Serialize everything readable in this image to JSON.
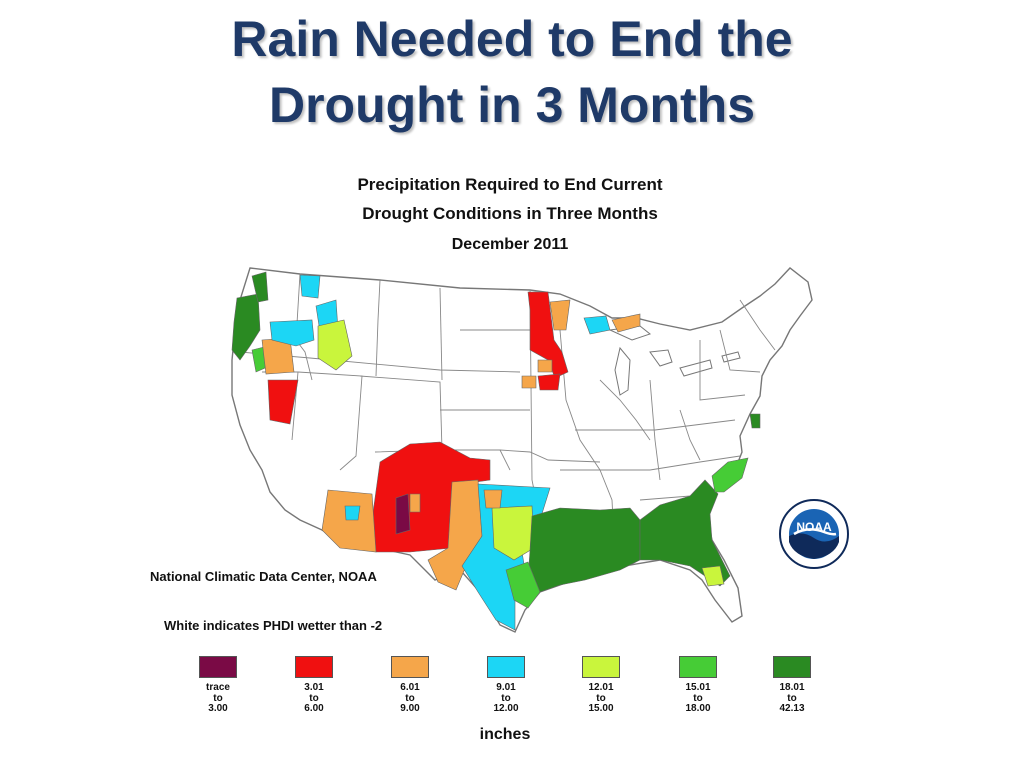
{
  "slide": {
    "title_line1": "Rain Needed to End the",
    "title_line2": "Drought in 3 Months"
  },
  "map": {
    "heading_line1": "Precipitation Required to End Current",
    "heading_line2": "Drought Conditions in Three Months",
    "date": "December 2011",
    "credit": "National Climatic Data Center, NOAA",
    "note": "White indicates PHDI wetter than -2",
    "units": "inches",
    "logo_text": "NOAA",
    "legend": [
      {
        "from": "trace",
        "to_word": "to",
        "to": "3.00",
        "color": "#7a0a45"
      },
      {
        "from": "3.01",
        "to_word": "to",
        "to": "6.00",
        "color": "#f01010"
      },
      {
        "from": "6.01",
        "to_word": "to",
        "to": "9.00",
        "color": "#f5a64a"
      },
      {
        "from": "9.01",
        "to_word": "to",
        "to": "12.00",
        "color": "#1cd6f5"
      },
      {
        "from": "12.01",
        "to_word": "to",
        "to": "15.00",
        "color": "#c9f53c"
      },
      {
        "from": "15.01",
        "to_word": "to",
        "to": "18.00",
        "color": "#46cc36"
      },
      {
        "from": "18.01",
        "to_word": "to",
        "to": "42.13",
        "color": "#2a8a22"
      }
    ],
    "colors": {
      "background": "#ffffff",
      "land_white": "#ffffff",
      "boundary": "#777777",
      "title": "#1f3a68",
      "noaa_blue": "#1a64b4",
      "noaa_navy": "#0f2a5a"
    }
  }
}
